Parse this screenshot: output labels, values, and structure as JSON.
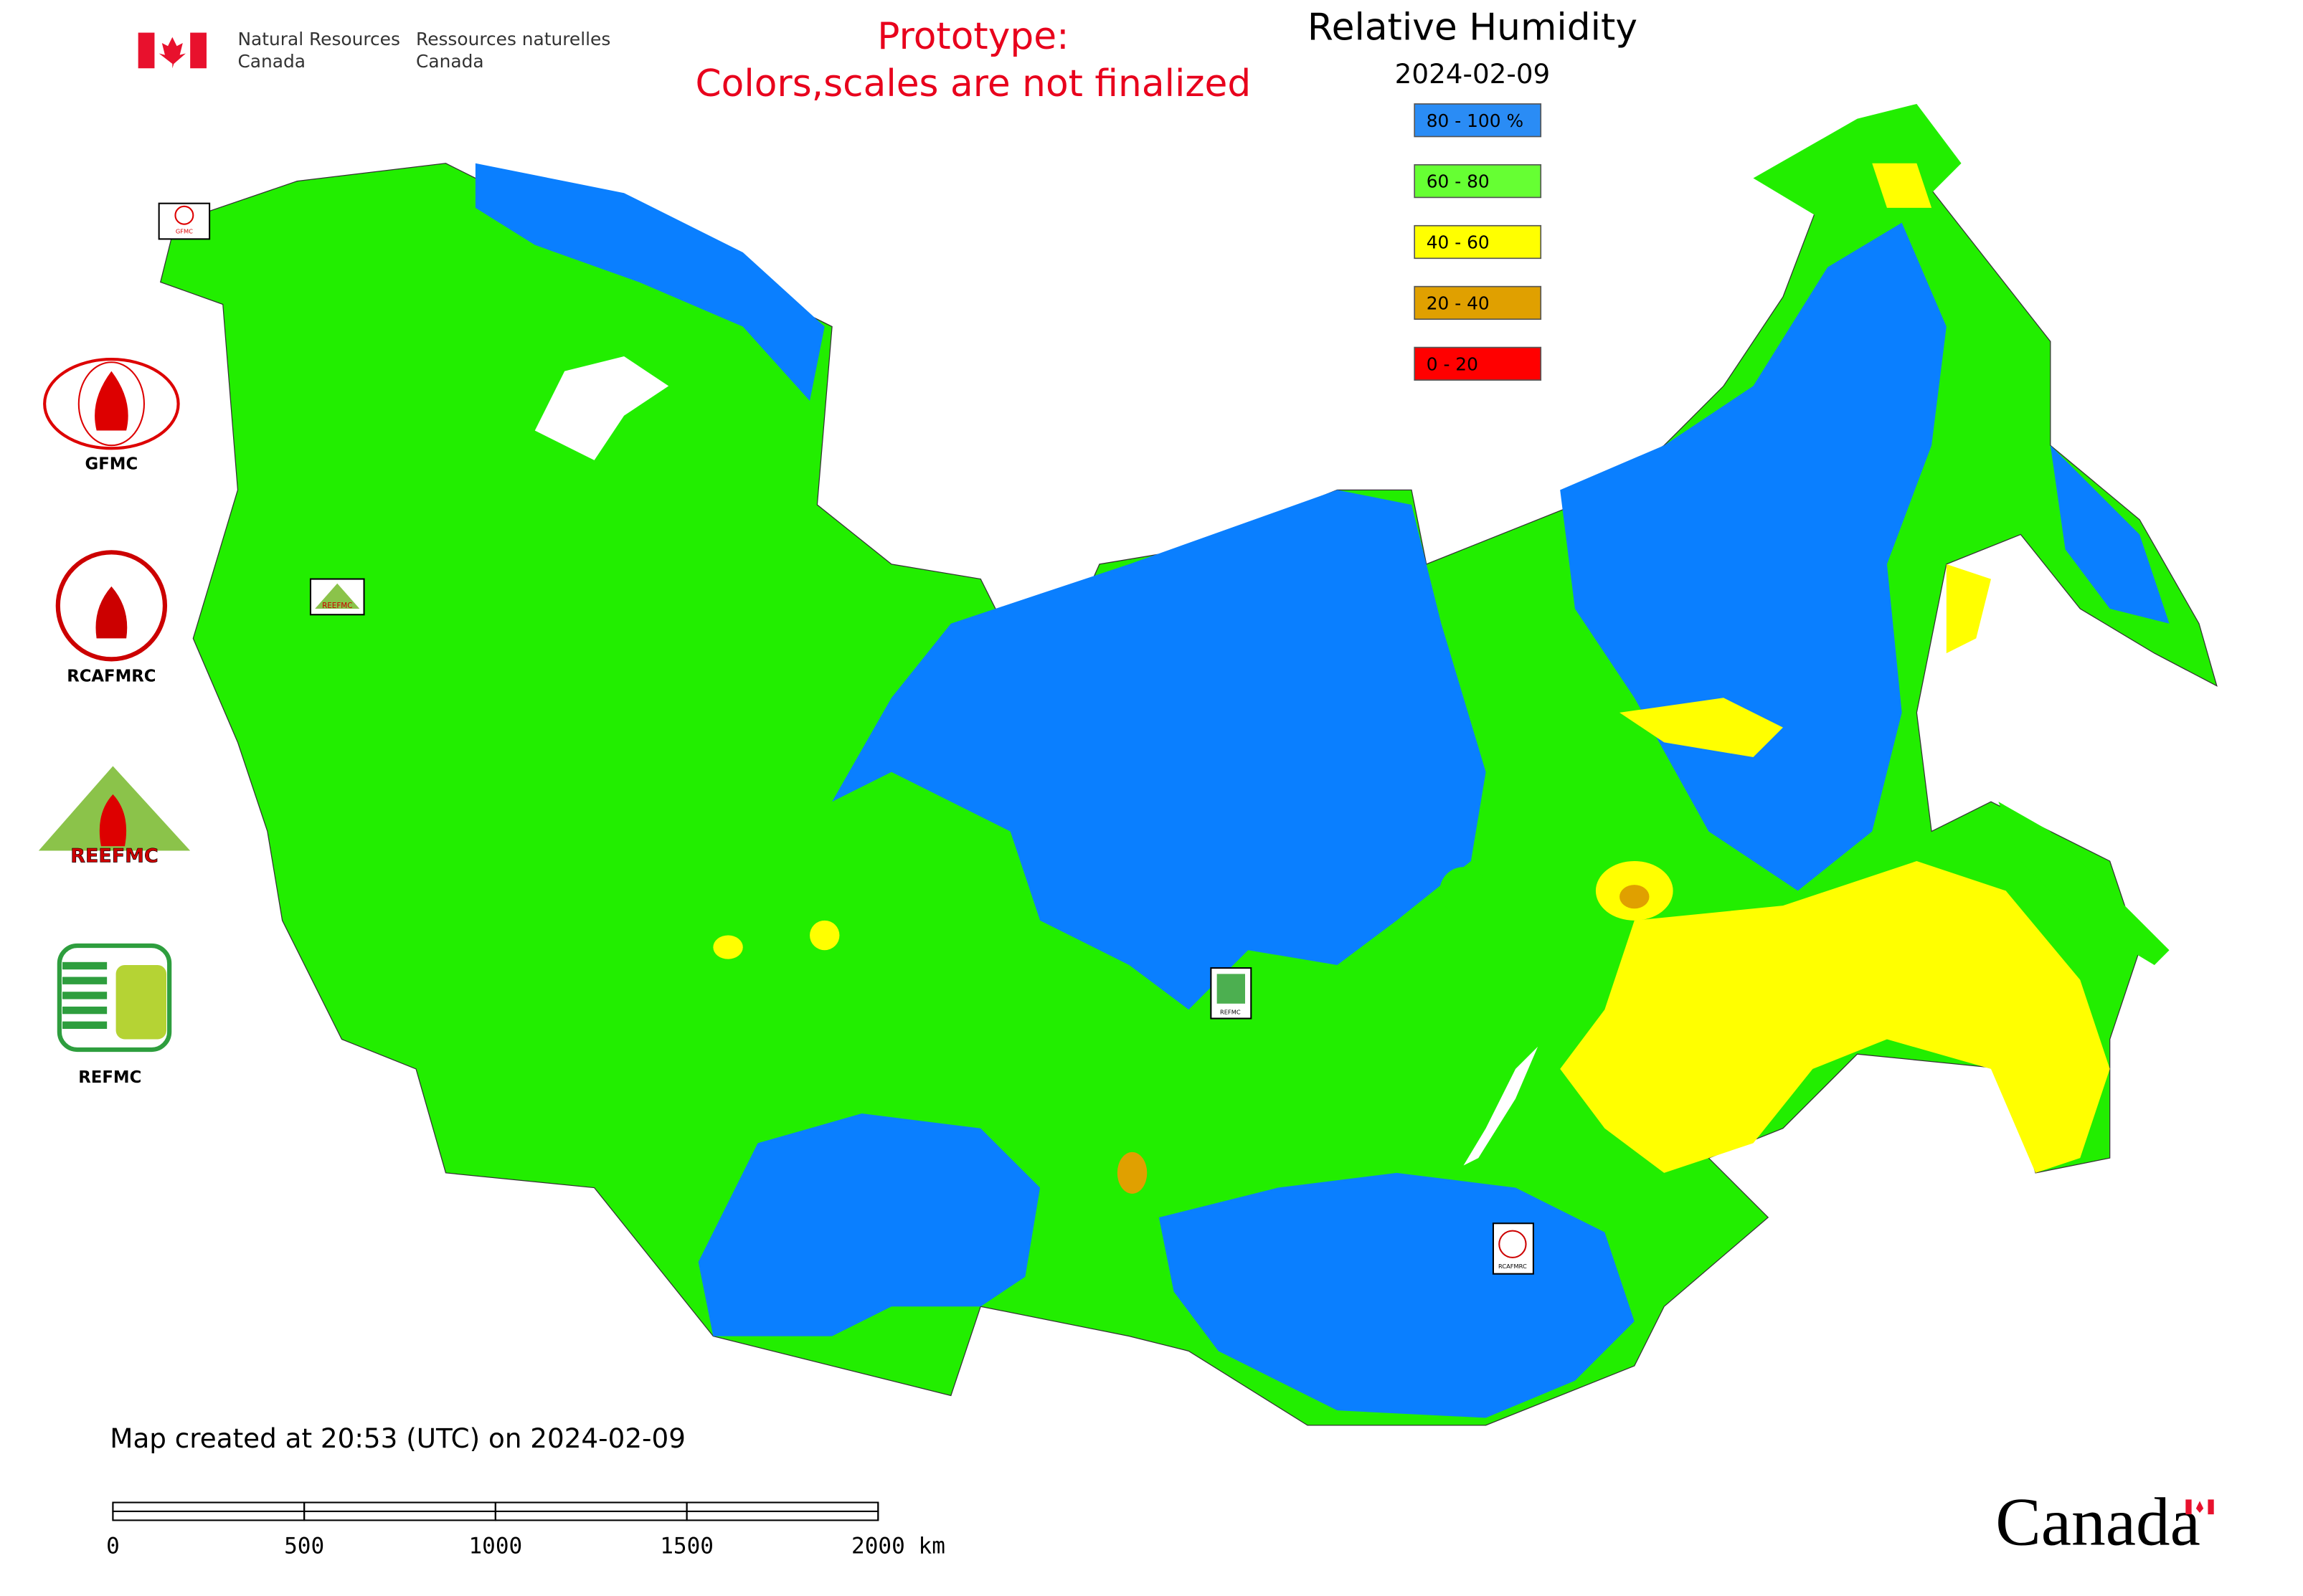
{
  "header": {
    "department_en": [
      "Natural Resources",
      "Canada"
    ],
    "department_fr": [
      "Ressources naturelles",
      "Canada"
    ],
    "notice": [
      "Prototype:",
      "Colors,scales are not finalized"
    ],
    "title": "Relative Humidity",
    "date": "2024-02-09"
  },
  "legend": [
    {
      "label": "80 - 100 %",
      "color": "#2a8cf5"
    },
    {
      "label": "60 - 80",
      "color": "#66ff33"
    },
    {
      "label": "40 - 60",
      "color": "#ffff00"
    },
    {
      "label": "20 - 40",
      "color": "#e0a000"
    },
    {
      "label": "0 - 20",
      "color": "#ff0000"
    }
  ],
  "side_logos": [
    "GFMC",
    "RCAFMRC",
    "REEFMC",
    "REFMC"
  ],
  "map_markers": [
    "GFMC",
    "REEFMC",
    "REFMC",
    "RCAFMRC"
  ],
  "footer": {
    "created": "Map created at 20:53 (UTC) on 2024-02-09",
    "wordmark": "Canada"
  },
  "scale_bar": {
    "ticks": [
      0,
      500,
      1000,
      1500,
      {
        "value": 2000,
        "label": "2000 km"
      }
    ]
  }
}
